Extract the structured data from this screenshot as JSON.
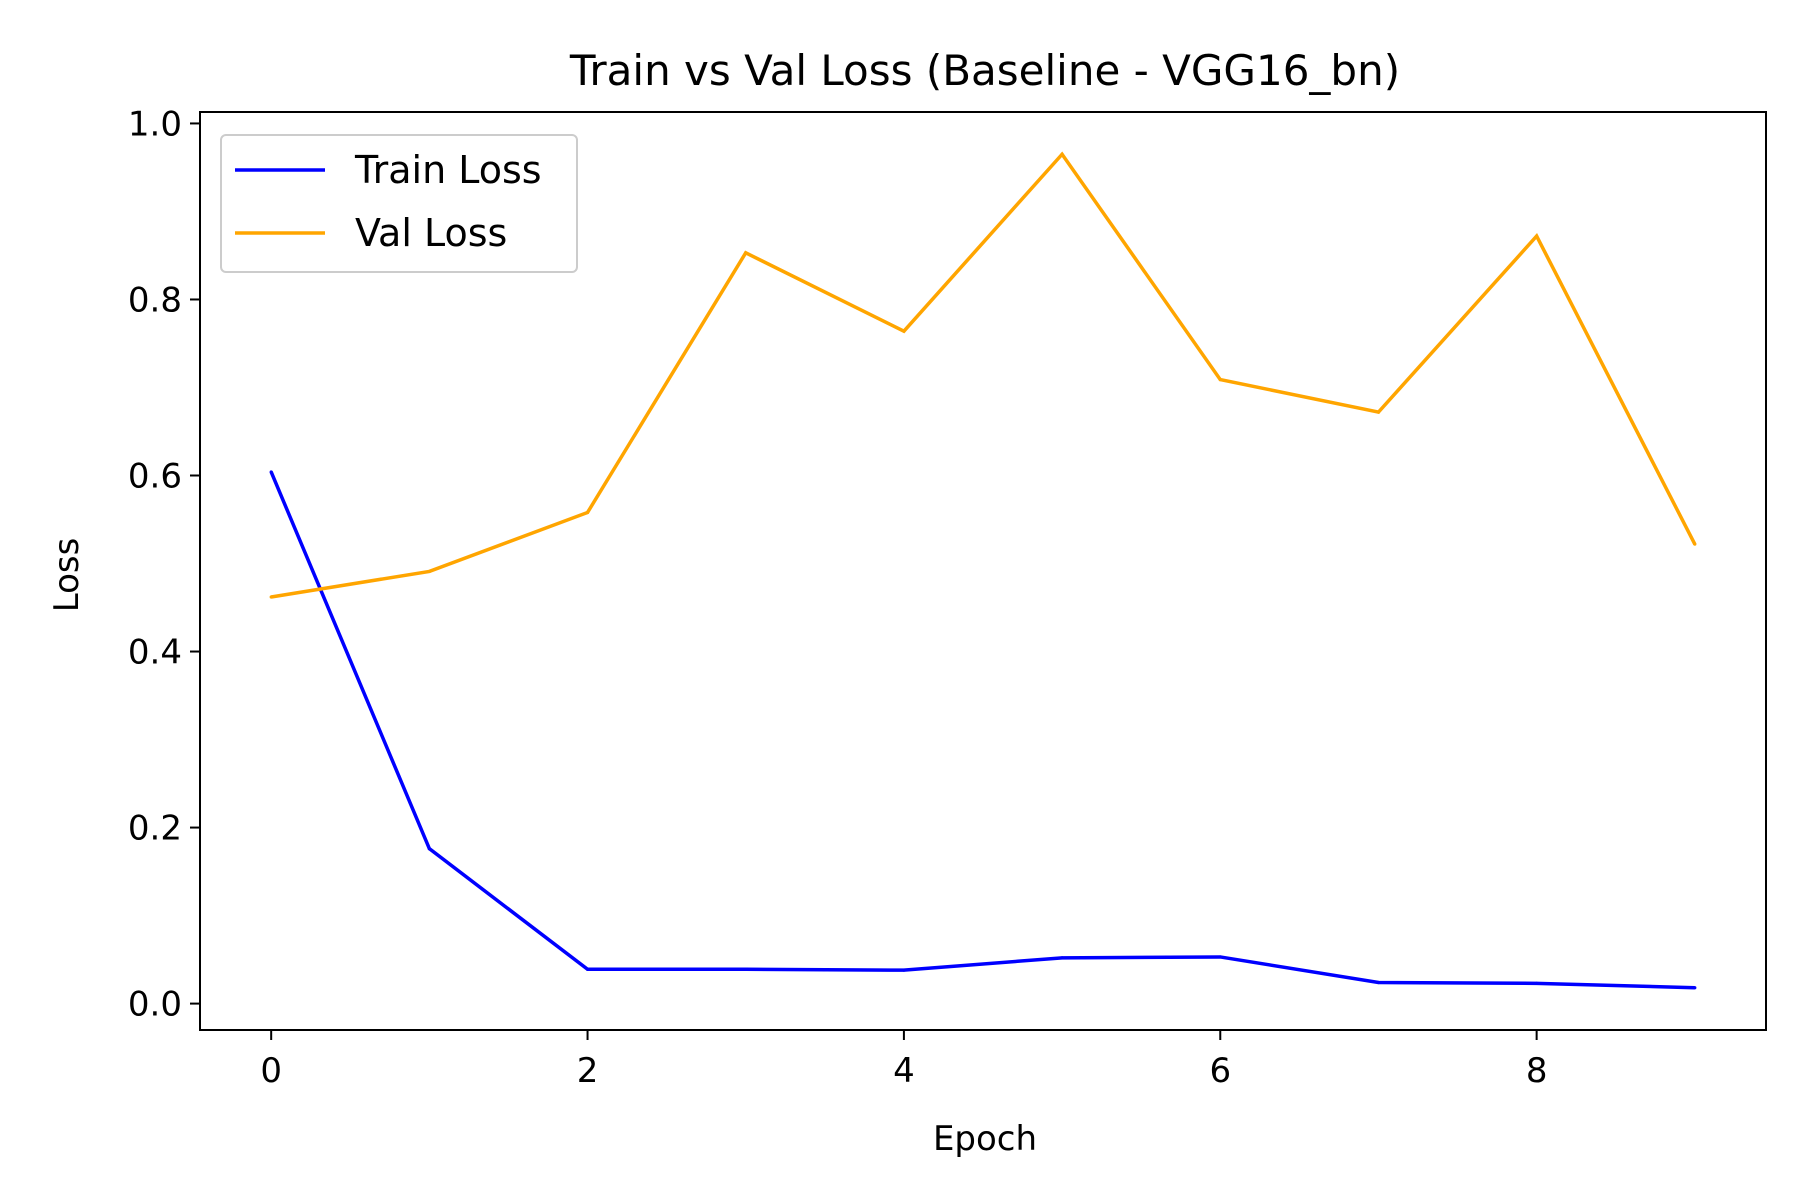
{
  "chart_data": {
    "type": "line",
    "title": "Train vs Val Loss (Baseline - VGG16_bn)",
    "xlabel": "Epoch",
    "ylabel": "Loss",
    "x": [
      0,
      1,
      2,
      3,
      4,
      5,
      6,
      7,
      8,
      9
    ],
    "xlim": [
      -0.45,
      9.45
    ],
    "ylim": [
      -0.03,
      1.013
    ],
    "xticks": [
      0,
      2,
      4,
      6,
      8
    ],
    "xtick_labels": [
      "0",
      "2",
      "4",
      "6",
      "8"
    ],
    "yticks": [
      0.0,
      0.2,
      0.4,
      0.6,
      0.8,
      1.0
    ],
    "ytick_labels": [
      "0.0",
      "0.2",
      "0.4",
      "0.6",
      "0.8",
      "1.0"
    ],
    "grid": false,
    "legend_position": "top-left",
    "series": [
      {
        "name": "Train Loss",
        "color": "#0000ff",
        "values": [
          0.604,
          0.176,
          0.039,
          0.039,
          0.038,
          0.052,
          0.053,
          0.024,
          0.023,
          0.018
        ]
      },
      {
        "name": "Val Loss",
        "color": "#ffa500",
        "values": [
          0.462,
          0.491,
          0.558,
          0.853,
          0.764,
          0.965,
          0.709,
          0.672,
          0.872,
          0.522
        ]
      }
    ]
  }
}
